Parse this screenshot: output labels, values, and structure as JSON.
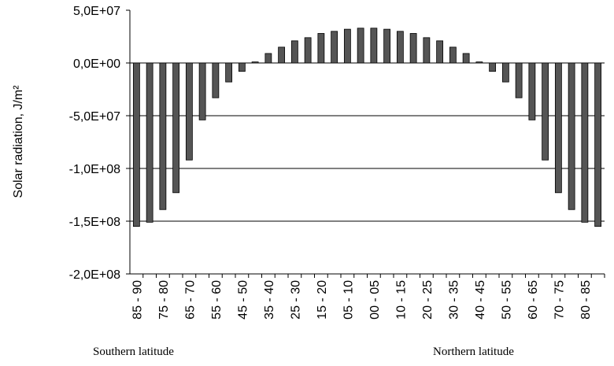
{
  "chart_data": {
    "type": "bar",
    "y_label": "Solar radiation, J/m²",
    "annotations": [
      "Southern latitude",
      "Northern latitude"
    ],
    "categories": [
      "85 - 90",
      null,
      "75 - 80",
      null,
      "65 - 70",
      null,
      "55 - 60",
      null,
      "45 - 50",
      null,
      "35 - 40",
      null,
      "25 - 30",
      null,
      "15 - 20",
      null,
      "05 - 10",
      null,
      "00 - 05",
      null,
      "10 - 15",
      null,
      "20 - 25",
      null,
      "30 - 35",
      null,
      "40 - 45",
      null,
      "50 - 55",
      null,
      "60 - 65",
      null,
      "70 - 75",
      null,
      "80 - 85",
      null
    ],
    "values": [
      -155000000,
      -151000000,
      -139000000,
      -123000000,
      -92000000,
      -54000000,
      -33000000,
      -18000000,
      -8000000,
      1000000,
      9000000,
      15000000,
      21000000,
      24000000,
      28000000,
      30000000,
      32000000,
      33000000,
      33000000,
      32000000,
      30000000,
      28000000,
      24000000,
      21000000,
      15000000,
      9000000,
      1000000,
      -8000000,
      -18000000,
      -33000000,
      -54000000,
      -92000000,
      -123000000,
      -139000000,
      -151000000,
      -155000000
    ],
    "color": "#555555",
    "ylim": [
      -200000000,
      50000000
    ],
    "yticks": [
      {
        "value": -200000000,
        "label": "-2,0E+08"
      },
      {
        "value": -150000000,
        "label": "-1,5E+08"
      },
      {
        "value": -100000000,
        "label": "-1,0E+08"
      },
      {
        "value": -50000000,
        "label": "-5,0E+07"
      },
      {
        "value": 0,
        "label": "0,0E+00"
      },
      {
        "value": 50000000,
        "label": "5,0E+07"
      }
    ],
    "grid": true
  }
}
